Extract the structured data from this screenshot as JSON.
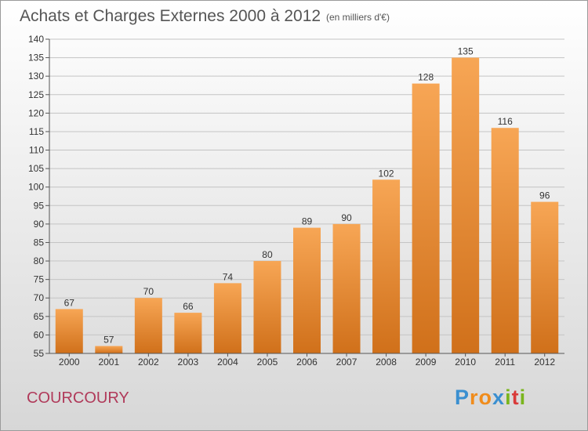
{
  "chart_data": {
    "type": "bar",
    "title": "Achats et Charges Externes 2000 à 2012",
    "unit": "(en milliers d'€)",
    "categories": [
      "2000",
      "2001",
      "2002",
      "2003",
      "2004",
      "2005",
      "2006",
      "2007",
      "2008",
      "2009",
      "2010",
      "2011",
      "2012"
    ],
    "values": [
      67,
      57,
      70,
      66,
      74,
      80,
      89,
      90,
      102,
      128,
      135,
      116,
      96
    ],
    "ylim": [
      55,
      140
    ],
    "yticks": [
      55,
      60,
      65,
      70,
      75,
      80,
      85,
      90,
      95,
      100,
      105,
      110,
      115,
      120,
      125,
      130,
      135,
      140
    ],
    "grid": true,
    "bar_color_top": "#f7a655",
    "bar_color_bottom": "#d0701a"
  },
  "commune_name": "COURCOURY",
  "brand": {
    "letters": [
      "P",
      "r",
      "o",
      "x",
      "i",
      "t",
      "i"
    ],
    "colors": [
      "#3a8fd0",
      "#f08c1c",
      "#f08c1c",
      "#3a8fd0",
      "#7ab51d",
      "#d93a3a",
      "#7ab51d"
    ]
  }
}
